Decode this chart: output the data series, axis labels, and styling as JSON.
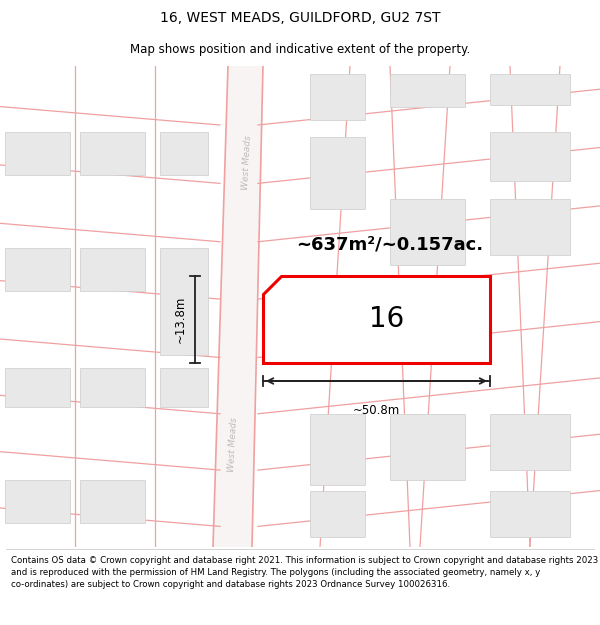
{
  "title": "16, WEST MEADS, GUILDFORD, GU2 7ST",
  "subtitle": "Map shows position and indicative extent of the property.",
  "footer": "Contains OS data © Crown copyright and database right 2021. This information is subject to Crown copyright and database rights 2023 and is reproduced with the permission of HM Land Registry. The polygons (including the associated geometry, namely x, y co-ordinates) are subject to Crown copyright and database rights 2023 Ordnance Survey 100026316.",
  "area_label": "~637m²/~0.157ac.",
  "number_label": "16",
  "dim_width": "~50.8m",
  "dim_height": "~13.8m",
  "bg_color": "#ffffff",
  "road_fill": "#ffffff",
  "road_line_color": "#f0a0a0",
  "building_fill": "#e8e8e8",
  "building_stroke": "#cccccc",
  "highlight_fill": "#ffffff",
  "highlight_stroke": "#ee0000",
  "road_label_color": "#bbbbbb",
  "dim_line_color": "#222222",
  "title_fontsize": 10,
  "subtitle_fontsize": 8.5,
  "footer_fontsize": 6.2,
  "area_fontsize": 13,
  "number_fontsize": 20,
  "dim_fontsize": 8.5,
  "road_label_fontsize": 6.5
}
